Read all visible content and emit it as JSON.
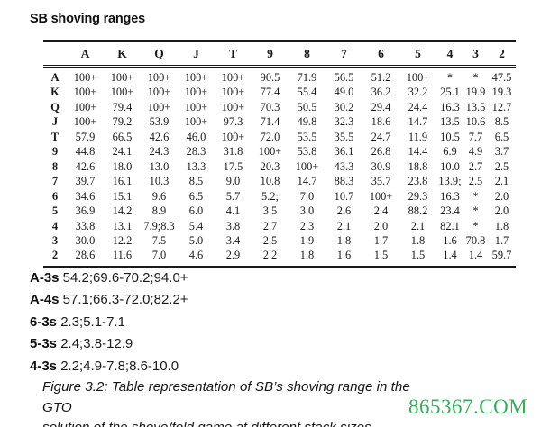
{
  "title": "SB shoving ranges",
  "table": {
    "columns": [
      "A",
      "K",
      "Q",
      "J",
      "T",
      "9",
      "8",
      "7",
      "6",
      "5",
      "4",
      "3",
      "2"
    ],
    "rows": [
      {
        "label": "A",
        "values": [
          "100+",
          "100+",
          "100+",
          "100+",
          "100+",
          "90.5",
          "71.9",
          "56.5",
          "51.2",
          "100+",
          "*",
          "*",
          "47.5"
        ]
      },
      {
        "label": "K",
        "values": [
          "100+",
          "100+",
          "100+",
          "100+",
          "100+",
          "77.4",
          "55.4",
          "49.0",
          "36.2",
          "32.2",
          "25.1",
          "19.9",
          "19.3"
        ]
      },
      {
        "label": "Q",
        "values": [
          "100+",
          "79.4",
          "100+",
          "100+",
          "100+",
          "70.3",
          "50.5",
          "30.2",
          "29.4",
          "24.4",
          "16.3",
          "13.5",
          "12.7"
        ]
      },
      {
        "label": "J",
        "values": [
          "100+",
          "79.2",
          "53.9",
          "100+",
          "97.3",
          "71.4",
          "49.8",
          "32.3",
          "18.6",
          "14.7",
          "13.5",
          "10.6",
          "8.5"
        ]
      },
      {
        "label": "T",
        "values": [
          "57.9",
          "66.5",
          "42.6",
          "46.0",
          "100+",
          "72.0",
          "53.5",
          "35.5",
          "24.7",
          "11.9",
          "10.5",
          "7.7",
          "6.5"
        ]
      },
      {
        "label": "9",
        "values": [
          "44.8",
          "24.1",
          "24.3",
          "28.3",
          "31.8",
          "100+",
          "53.8",
          "36.1",
          "26.8",
          "14.4",
          "6.9",
          "4.9",
          "3.7"
        ]
      },
      {
        "label": "8",
        "values": [
          "42.6",
          "18.0",
          "13.0",
          "13.3",
          "17.5",
          "20.3",
          "100+",
          "43.3",
          "30.9",
          "18.8",
          "10.0",
          "2.7",
          "2.5"
        ]
      },
      {
        "label": "7",
        "values": [
          "39.7",
          "16.1",
          "10.3",
          "8.5",
          "9.0",
          "10.8",
          "14.7",
          "88.3",
          "35.7",
          "23.8",
          "13.9;",
          "2.5",
          "2.1"
        ]
      },
      {
        "label": "6",
        "values": [
          "34.6",
          "15.1",
          "9.6",
          "6.5",
          "5.7",
          "5.2;",
          "7.0",
          "10.7",
          "100+",
          "29.3",
          "16.3",
          "*",
          "2.0"
        ]
      },
      {
        "label": "5",
        "values": [
          "36.9",
          "14.2",
          "8.9",
          "6.0",
          "4.1",
          "3.5",
          "3.0",
          "2.6",
          "2.4",
          "88.2",
          "23.4",
          "*",
          "2.0"
        ]
      },
      {
        "label": "4",
        "values": [
          "33.8",
          "13.1",
          "7.9;8.3",
          "5.4",
          "3.8",
          "2.7",
          "2.3",
          "2.1",
          "2.0",
          "2.1",
          "82.1",
          "*",
          "1.8"
        ]
      },
      {
        "label": "3",
        "values": [
          "30.0",
          "12.2",
          "7.5",
          "5.0",
          "3.4",
          "2.5",
          "1.9",
          "1.8",
          "1.7",
          "1.8",
          "1.6",
          "70.8",
          "1.7"
        ]
      },
      {
        "label": "2",
        "values": [
          "28.6",
          "11.6",
          "7.0",
          "4.6",
          "2.9",
          "2.2",
          "1.8",
          "1.6",
          "1.5",
          "1.5",
          "1.4",
          "1.4",
          "59.7"
        ]
      }
    ]
  },
  "notes": [
    {
      "label": "A-3s",
      "value": "54.2;69.6-70.2;94.0+"
    },
    {
      "label": "A-4s",
      "value": "57.1;66.3-72.0;82.2+"
    },
    {
      "label": "6-3s",
      "value": "2.3;5.1-7.1"
    },
    {
      "label": "5-3s",
      "value": "2.4;3.8-12.9"
    },
    {
      "label": "4-3s",
      "value": "2.2;4.9-7.8;8.6-10.0"
    }
  ],
  "caption": {
    "line1": "Figure 3.2: Table representation of SB’s shoving range in the GTO",
    "line2": "solution of the shove/fold game at different stack sizes."
  },
  "watermark": {
    "text": "865367.COM",
    "color": "#3cab5e"
  }
}
